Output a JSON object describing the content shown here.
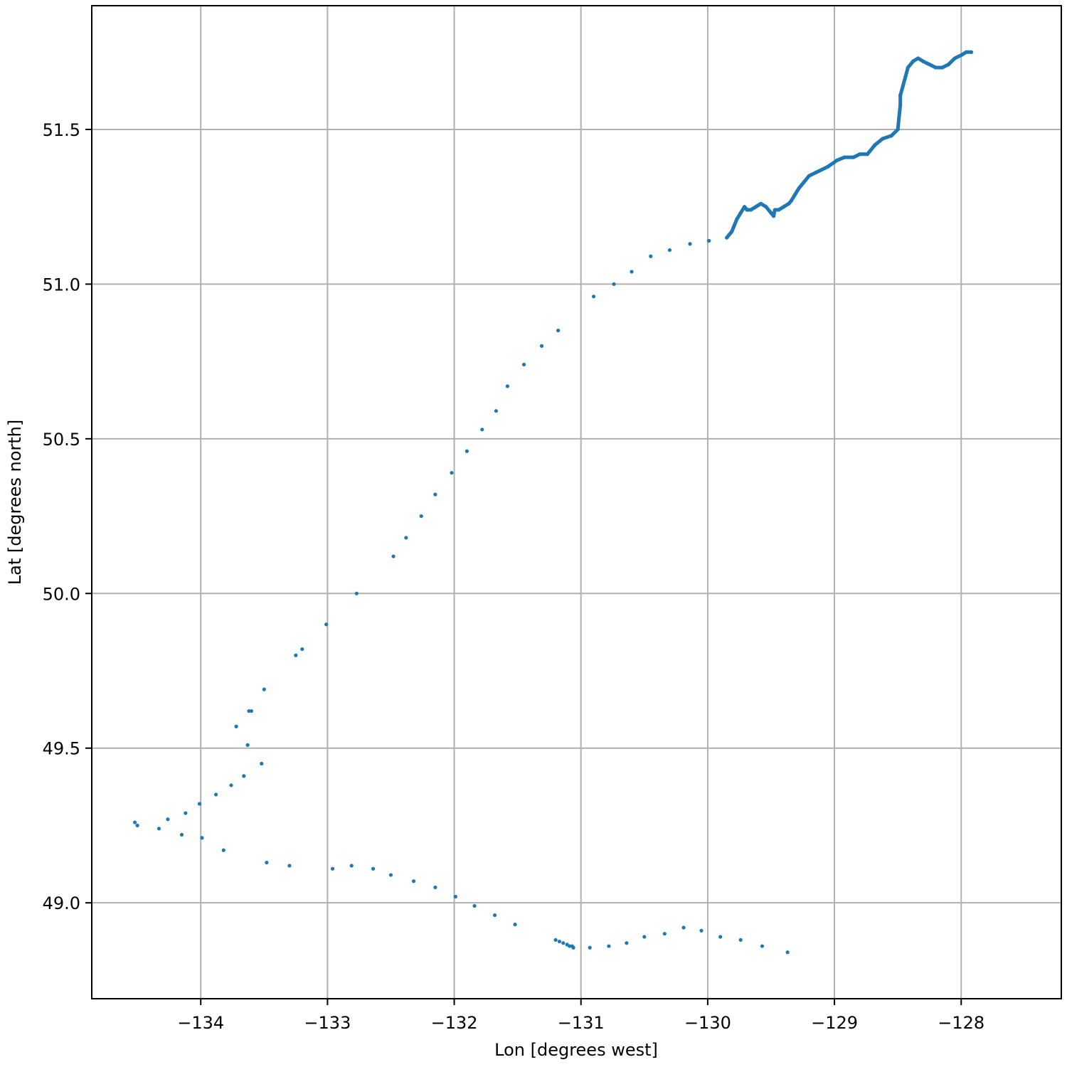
{
  "chart_data": {
    "type": "scatter",
    "xlabel": "Lon [degrees west]",
    "ylabel": "Lat [degrees north]",
    "xlim": [
      -134.86,
      -127.21
    ],
    "ylim": [
      48.69,
      51.9
    ],
    "grid": true,
    "x_ticks": [
      -134,
      -133,
      -132,
      -131,
      -130,
      -129,
      -128
    ],
    "x_tick_labels": [
      "−134",
      "−133",
      "−132",
      "−131",
      "−130",
      "−129",
      "−128"
    ],
    "y_ticks": [
      49.0,
      49.5,
      50.0,
      50.5,
      51.0,
      51.5
    ],
    "y_tick_labels": [
      "49.0",
      "49.5",
      "50.0",
      "50.5",
      "51.0",
      "51.5"
    ],
    "color": "#1f77b4",
    "series": [
      {
        "x": [
          -134.52,
          -134.5,
          -134.33,
          -134.26,
          -134.15,
          -134.12,
          -134.01,
          -133.99,
          -133.82,
          -133.88,
          -133.76,
          -133.72,
          -133.66,
          -133.63,
          -133.62,
          -133.6,
          -133.52,
          -133.5,
          -133.48,
          -133.3,
          -133.25,
          -133.2,
          -133.01,
          -132.96,
          -132.77,
          -132.81,
          -132.64,
          -132.48,
          -132.5,
          -132.38,
          -132.32,
          -132.26,
          -132.15,
          -132.15,
          -132.02,
          -131.99,
          -131.9,
          -131.84,
          -131.78,
          -131.68,
          -131.67,
          -131.58,
          -131.52,
          -131.45,
          -131.31,
          -131.18,
          -131.2,
          -131.17,
          -131.14,
          -131.11,
          -131.09,
          -131.07,
          -131.06,
          -130.93,
          -130.78,
          -130.64,
          -130.5,
          -130.34,
          -130.19,
          -130.05,
          -129.9,
          -129.74,
          -129.57,
          -129.37,
          -130.9,
          -130.74,
          -130.6,
          -130.45,
          -130.3,
          -130.14,
          -129.99,
          -129.85,
          -129.83,
          -129.81,
          -129.79,
          -129.77,
          -129.74,
          -129.71,
          -129.69,
          -129.66,
          -129.62,
          -129.58,
          -129.54,
          -129.5,
          -129.48,
          -129.47,
          -129.44,
          -129.4,
          -129.36,
          -129.34,
          -129.31,
          -129.28,
          -129.24,
          -129.2,
          -129.15,
          -129.1,
          -129.05,
          -128.98,
          -128.92,
          -128.85,
          -128.8,
          -128.74,
          -128.72,
          -128.68,
          -128.62,
          -128.55,
          -128.5,
          -128.49,
          -128.48,
          -128.48,
          -128.46,
          -128.44,
          -128.42,
          -128.38,
          -128.34,
          -128.3,
          -128.25,
          -128.2,
          -128.15,
          -128.1,
          -128.05,
          -128.0,
          -127.96,
          -127.92
        ],
        "y": [
          49.26,
          49.25,
          49.24,
          49.27,
          49.22,
          49.29,
          49.32,
          49.21,
          49.17,
          49.35,
          49.38,
          49.57,
          49.41,
          49.51,
          49.62,
          49.62,
          49.45,
          49.69,
          49.13,
          49.12,
          49.8,
          49.82,
          49.9,
          49.11,
          50.0,
          49.12,
          49.11,
          50.12,
          49.09,
          50.18,
          49.07,
          50.25,
          50.32,
          49.05,
          50.39,
          49.02,
          50.46,
          48.99,
          50.53,
          48.96,
          50.59,
          50.67,
          48.93,
          50.74,
          50.8,
          50.85,
          48.88,
          48.875,
          48.87,
          48.865,
          48.86,
          48.86,
          48.855,
          48.855,
          48.86,
          48.87,
          48.89,
          48.9,
          48.92,
          48.91,
          48.89,
          48.88,
          48.86,
          48.84,
          50.96,
          51.0,
          51.04,
          51.09,
          51.11,
          51.13,
          51.14,
          51.15,
          51.16,
          51.17,
          51.19,
          51.21,
          51.23,
          51.25,
          51.24,
          51.24,
          51.25,
          51.26,
          51.25,
          51.23,
          51.22,
          51.24,
          51.24,
          51.25,
          51.26,
          51.27,
          51.29,
          51.31,
          51.33,
          51.35,
          51.36,
          51.37,
          51.38,
          51.4,
          51.41,
          51.41,
          51.42,
          51.42,
          51.43,
          51.45,
          51.47,
          51.48,
          51.5,
          51.54,
          51.58,
          51.61,
          51.64,
          51.67,
          51.7,
          51.72,
          51.73,
          51.72,
          51.71,
          51.7,
          51.7,
          51.71,
          51.73,
          51.74,
          51.75,
          51.75
        ]
      }
    ]
  }
}
